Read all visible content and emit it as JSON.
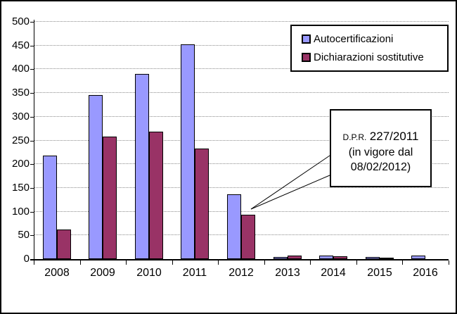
{
  "chart_data": {
    "type": "bar",
    "title": "",
    "categories": [
      "2008",
      "2009",
      "2010",
      "2011",
      "2012",
      "2013",
      "2014",
      "2015",
      "2016"
    ],
    "series": [
      {
        "name": "Autocertificazioni",
        "color": "#9999FF",
        "values": [
          218,
          345,
          390,
          452,
          136,
          4,
          7,
          5,
          8
        ]
      },
      {
        "name": "Dichiarazioni sostitutive",
        "color": "#993366",
        "values": [
          63,
          258,
          269,
          233,
          94,
          8,
          6,
          2,
          0
        ]
      }
    ],
    "xlabel": "",
    "ylabel": "",
    "ylim": [
      0,
      500
    ],
    "ytick_interval": 50,
    "y_tick_labels": [
      "500",
      "450",
      "400",
      "350",
      "300",
      "250",
      "200",
      "150",
      "100",
      "50",
      "0"
    ],
    "grid": "horizontal-dotted",
    "gridline_color": "#8c8c8c",
    "legend_position": "top-right",
    "bar_border_color": "#000000",
    "background_color": "#ffffff"
  },
  "legend": {
    "items": [
      {
        "label": "Autocertificazioni",
        "color": "#9999FF"
      },
      {
        "label": "Dichiarazioni sostitutive",
        "color": "#993366"
      }
    ]
  },
  "annotation": {
    "prefix": "D.P.R.",
    "number": "227/2011",
    "line2": "(in vigore dal",
    "line3": "08/02/2012)",
    "target": "2012 bars"
  }
}
